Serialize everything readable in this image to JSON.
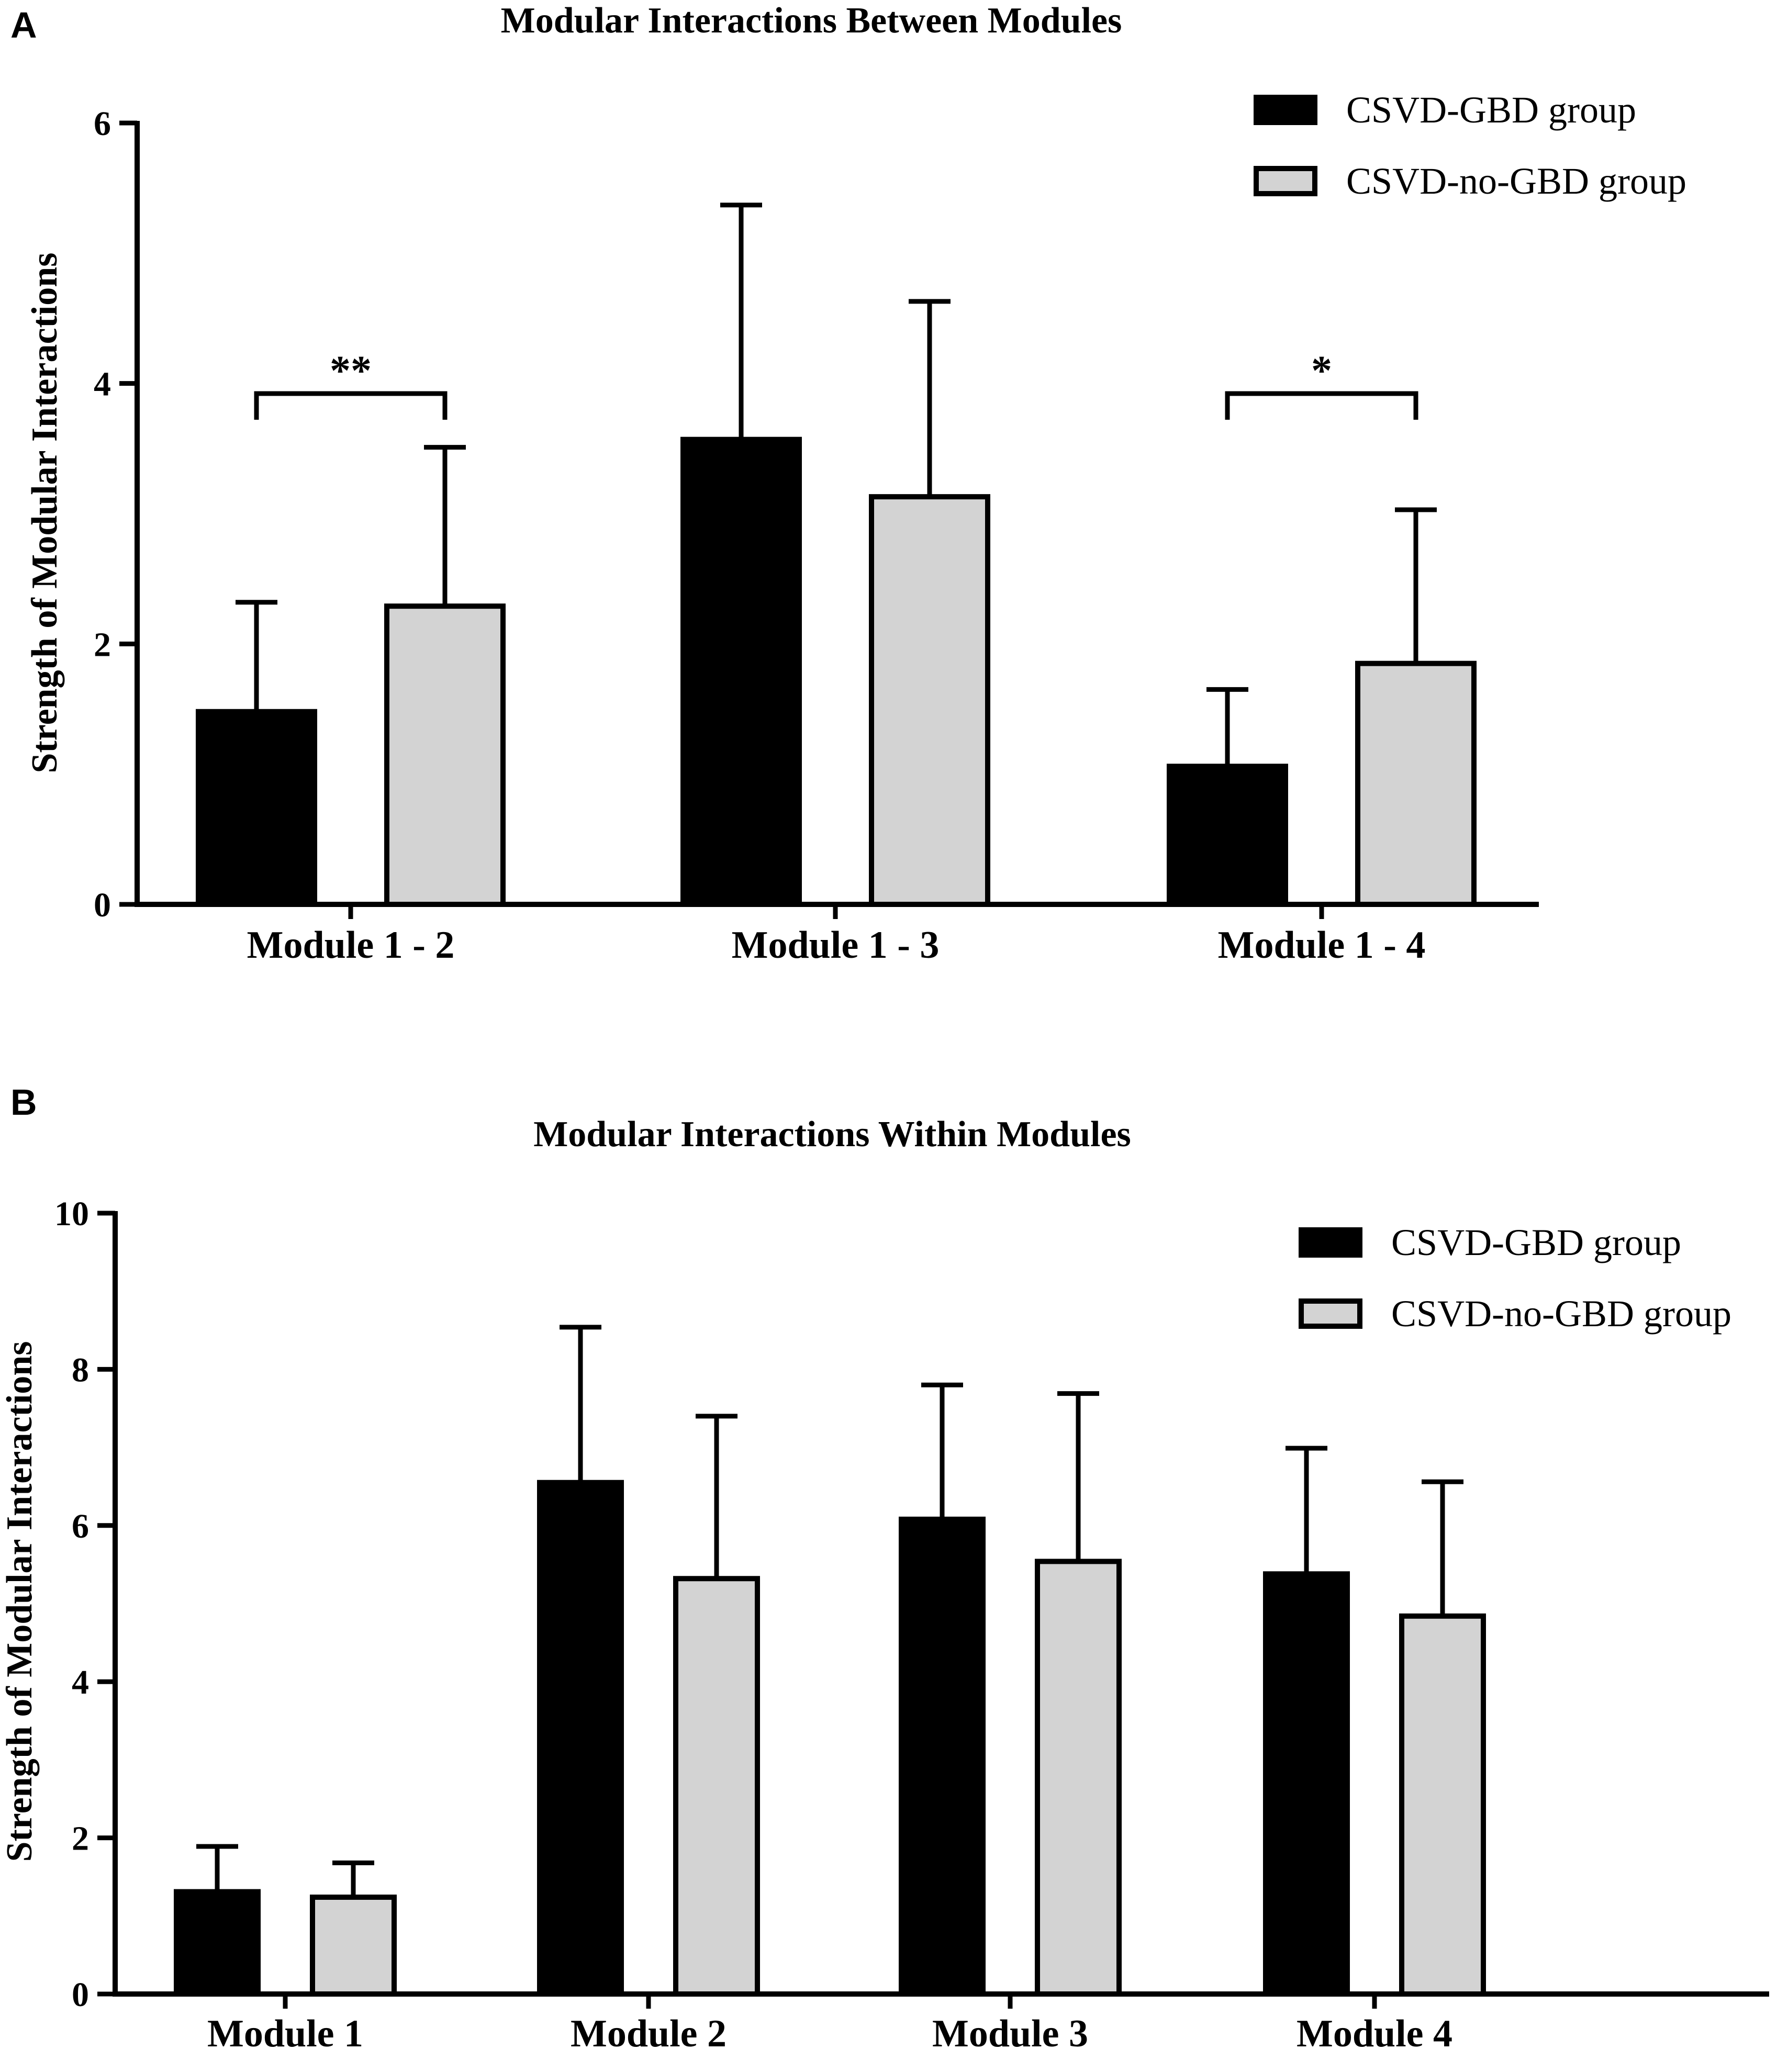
{
  "chart_data": [
    {
      "panel": "A",
      "type": "bar",
      "title": "Modular Interactions Between Modules",
      "xlabel": "",
      "ylabel": "Strength of Modular Interactions",
      "ylim": [
        0,
        6
      ],
      "yticks": [
        "0",
        "2",
        "4",
        "6"
      ],
      "categories": [
        "Module 1 - 2",
        "Module 1 - 3",
        "Module 1 - 4"
      ],
      "series": [
        {
          "name": "CSVD-GBD group",
          "color": "#000000",
          "values": [
            1.48,
            3.57,
            1.06
          ],
          "errors": [
            0.84,
            1.8,
            0.59
          ]
        },
        {
          "name": "CSVD-no-GBD group",
          "color": "#d3d3d3",
          "values": [
            2.29,
            3.13,
            1.85
          ],
          "errors": [
            1.22,
            1.5,
            1.18
          ]
        }
      ],
      "annotations": [
        {
          "category": "Module 1 - 2",
          "text": "**"
        },
        {
          "category": "Module 1 - 4",
          "text": "*"
        }
      ],
      "legend": "top-right"
    },
    {
      "panel": "B",
      "type": "bar",
      "title": "Modular Interactions Within Modules",
      "xlabel": "",
      "ylabel": "Strength of Modular Interactions",
      "ylim": [
        0,
        10
      ],
      "yticks": [
        "0",
        "2",
        "4",
        "6",
        "8",
        "10"
      ],
      "categories": [
        "Module 1",
        "Module 2",
        "Module 3",
        "Module 4"
      ],
      "series": [
        {
          "name": "CSVD-GBD group",
          "color": "#000000",
          "values": [
            1.31,
            6.55,
            6.08,
            5.38
          ],
          "errors": [
            0.58,
            1.99,
            1.72,
            1.61
          ]
        },
        {
          "name": "CSVD-no-GBD group",
          "color": "#d3d3d3",
          "values": [
            1.24,
            5.32,
            5.54,
            4.84
          ],
          "errors": [
            0.44,
            2.08,
            2.15,
            1.72
          ]
        }
      ],
      "annotations": [],
      "legend": "top-right"
    }
  ]
}
